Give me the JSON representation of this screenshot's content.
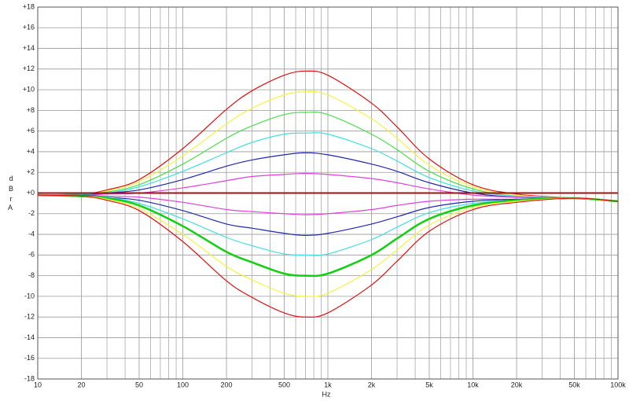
{
  "chart_data": {
    "type": "line",
    "xlabel": "Hz",
    "ylabel": "dBr",
    "ylabel_unit": "A",
    "log_x": true,
    "grid": true,
    "xlim": [
      10,
      100000
    ],
    "ylim": [
      -18,
      18
    ],
    "xticks": [
      10,
      20,
      50,
      100,
      200,
      500,
      {
        "value": 1000,
        "label": "1k"
      },
      {
        "value": 2000,
        "label": "2k"
      },
      {
        "value": 5000,
        "label": "5k"
      },
      {
        "value": 10000,
        "label": "10k"
      },
      {
        "value": 20000,
        "label": "20k"
      },
      {
        "value": 50000,
        "label": "50k"
      },
      {
        "value": 100000,
        "label": "100k"
      }
    ],
    "x_minor_grid": [
      30,
      40,
      60,
      70,
      80,
      90,
      300,
      400,
      600,
      700,
      800,
      900,
      3000,
      4000,
      6000,
      7000,
      8000,
      9000,
      30000,
      40000,
      60000,
      70000,
      80000,
      90000
    ],
    "yticks": [
      {
        "value": 18,
        "label": "+18"
      },
      {
        "value": 16,
        "label": "+16"
      },
      {
        "value": 14,
        "label": "+14"
      },
      {
        "value": 12,
        "label": "+12"
      },
      {
        "value": 10,
        "label": "+10"
      },
      {
        "value": 8,
        "label": "+8"
      },
      {
        "value": 6,
        "label": "+6"
      },
      {
        "value": 4,
        "label": "+4"
      },
      {
        "value": 2,
        "label": "+2"
      },
      {
        "value": 0,
        "label": "+0"
      },
      -2,
      -4,
      -6,
      -8,
      -10,
      -12,
      -14,
      -16,
      -18
    ],
    "x": [
      10,
      20,
      30,
      50,
      100,
      200,
      300,
      500,
      700,
      1000,
      2000,
      3000,
      5000,
      10000,
      20000,
      50000,
      100000
    ],
    "series": [
      {
        "color": "#e01010",
        "values": [
          -0.2,
          -0.1,
          0.3,
          1.3,
          4.3,
          8.1,
          9.9,
          11.4,
          11.8,
          11.4,
          8.7,
          6.4,
          3.3,
          0.8,
          -0.1,
          -0.5,
          -0.8
        ]
      },
      {
        "color": "#f4f440",
        "values": [
          -0.2,
          -0.1,
          0.2,
          1.1,
          3.6,
          6.7,
          8.2,
          9.5,
          9.8,
          9.5,
          7.2,
          5.3,
          2.7,
          0.6,
          -0.2,
          -0.5,
          -0.8
        ]
      },
      {
        "color": "#48e048",
        "values": [
          -0.2,
          -0.1,
          0.1,
          0.8,
          2.8,
          5.3,
          6.5,
          7.6,
          7.8,
          7.6,
          5.7,
          4.2,
          2.1,
          0.4,
          -0.3,
          -0.5,
          -0.8
        ]
      },
      {
        "color": "#40e0e0",
        "values": [
          -0.2,
          -0.1,
          0,
          0.6,
          2.1,
          3.9,
          4.9,
          5.7,
          5.8,
          5.7,
          4.3,
          3.1,
          1.5,
          0.2,
          -0.3,
          -0.5,
          -0.8
        ]
      },
      {
        "color": "#2028b0",
        "values": [
          -0.2,
          -0.2,
          0,
          0.3,
          1.3,
          2.6,
          3.2,
          3.7,
          3.9,
          3.7,
          2.8,
          2.1,
          1,
          0,
          -0.4,
          -0.5,
          -0.8
        ]
      },
      {
        "color": "#e040e0",
        "values": [
          -0.2,
          -0.2,
          -0.1,
          0,
          0.5,
          1.2,
          1.6,
          1.8,
          1.9,
          1.8,
          1.4,
          1,
          0.4,
          -0.2,
          -0.4,
          -0.5,
          -0.8
        ]
      },
      {
        "color": "#a01010",
        "line_width": 2,
        "values": [
          0,
          0,
          0,
          0,
          0,
          0,
          0,
          0,
          0,
          0,
          0,
          0,
          0,
          0,
          0,
          0,
          0
        ]
      },
      {
        "color": "#e040e0",
        "values": [
          -0.2,
          -0.2,
          -0.3,
          -0.4,
          -0.9,
          -1.6,
          -1.8,
          -2,
          -2.1,
          -2,
          -1.6,
          -1.2,
          -0.8,
          -0.6,
          -0.6,
          -0.5,
          -0.8
        ]
      },
      {
        "color": "#2028b0",
        "values": [
          -0.2,
          -0.2,
          -0.4,
          -0.7,
          -1.7,
          -3,
          -3.4,
          -3.9,
          -4.1,
          -3.9,
          -3,
          -2.3,
          -1.4,
          -0.8,
          -0.6,
          -0.5,
          -0.8
        ]
      },
      {
        "color": "#40e0e0",
        "values": [
          -0.2,
          -0.3,
          -0.4,
          -1,
          -2.5,
          -4.3,
          -5.1,
          -5.9,
          -6,
          -5.9,
          -4.5,
          -3.3,
          -1.9,
          -1,
          -0.7,
          -0.5,
          -0.8
        ]
      },
      {
        "color": "#10d010",
        "line_width": 2.5,
        "values": [
          -0.2,
          -0.3,
          -0.5,
          -1.2,
          -3.2,
          -5.7,
          -6.7,
          -7.8,
          -8,
          -7.8,
          -6,
          -4.4,
          -2.5,
          -1.2,
          -0.7,
          -0.5,
          -0.8
        ]
      },
      {
        "color": "#f4f440",
        "values": [
          -0.2,
          -0.3,
          -0.6,
          -1.5,
          -4,
          -7.1,
          -8.4,
          -9.7,
          -10,
          -9.7,
          -7.4,
          -5.5,
          -3.1,
          -1.4,
          -0.8,
          -0.5,
          -0.8
        ]
      },
      {
        "color": "#e01010",
        "values": [
          -0.2,
          -0.3,
          -0.7,
          -1.7,
          -4.7,
          -8.5,
          -10.1,
          -11.6,
          -12,
          -11.6,
          -8.9,
          -6.6,
          -3.7,
          -1.6,
          -0.9,
          -0.5,
          -0.8
        ]
      }
    ]
  }
}
